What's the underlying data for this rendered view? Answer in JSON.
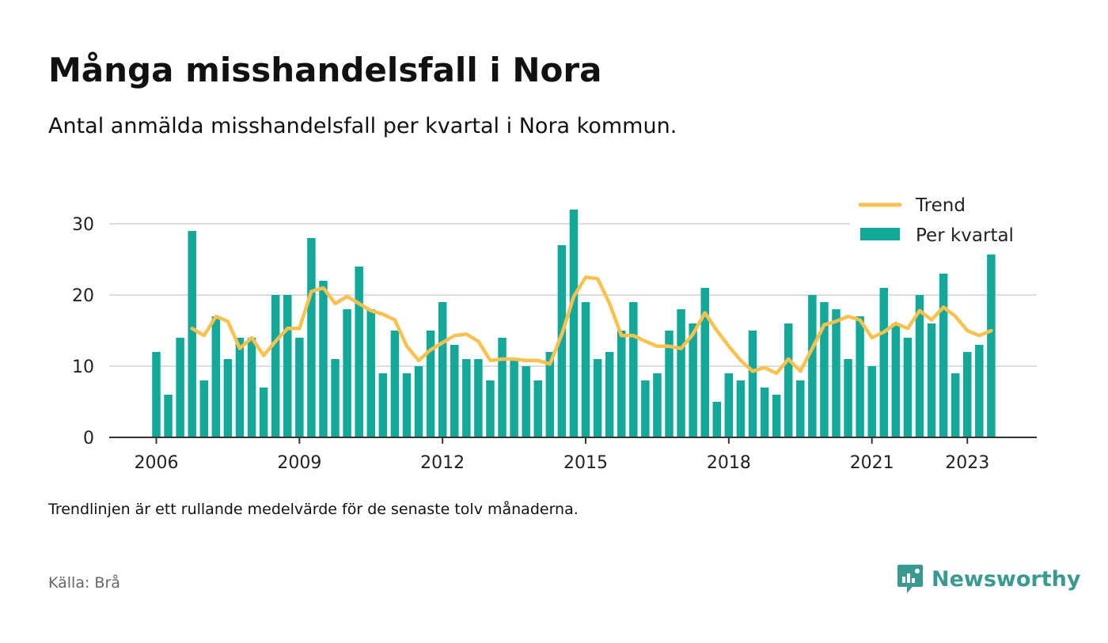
{
  "title": "Många misshandelsfall i Nora",
  "subtitle": "Antal anmälda misshandelsfall per kvartal i Nora kommun.",
  "note": "Trendlinjen är ett rullande medelvärde för de senaste tolv månaderna.",
  "source": "Källa: Brå",
  "brand": {
    "name": "Newsworthy",
    "color": "#3a9a90",
    "icon": "newsworthy-logo-icon"
  },
  "colors": {
    "bar": "#12a89a",
    "trend": "#f9c14e",
    "grid": "#dddddd",
    "axis": "#333333"
  },
  "chart_data": {
    "type": "bar",
    "x_start": "2006 Q1",
    "x_tick_labels": [
      "2006",
      "2009",
      "2012",
      "2015",
      "2018",
      "2021",
      "2023"
    ],
    "y_ticks": [
      0,
      10,
      20,
      30
    ],
    "ylim": [
      0,
      32
    ],
    "grid": true,
    "legend_position": "top-right",
    "series": [
      {
        "name": "Per kvartal",
        "kind": "bar",
        "values": [
          12,
          6,
          14,
          29,
          8,
          17,
          11,
          14,
          14,
          7,
          20,
          20,
          14,
          28,
          22,
          11,
          18,
          24,
          18,
          9,
          15,
          9,
          10,
          15,
          19,
          13,
          11,
          11,
          8,
          14,
          11,
          10,
          8,
          12,
          27,
          32,
          19,
          11,
          12,
          15,
          19,
          8,
          9,
          15,
          18,
          16,
          21,
          5,
          9,
          8,
          15,
          7,
          6,
          16,
          8,
          20,
          19,
          18,
          11,
          17,
          10,
          21,
          16,
          14,
          20,
          16,
          23,
          9,
          12,
          13,
          25.7
        ]
      },
      {
        "name": "Trend",
        "kind": "line",
        "values": [
          null,
          null,
          null,
          15.3,
          14.3,
          17.0,
          16.3,
          12.5,
          14.0,
          11.5,
          13.5,
          15.3,
          15.3,
          20.5,
          21.0,
          18.8,
          19.8,
          18.8,
          17.8,
          17.3,
          16.5,
          12.8,
          10.8,
          12.3,
          13.3,
          14.3,
          14.5,
          13.5,
          10.8,
          11.0,
          11.0,
          10.8,
          10.8,
          10.3,
          14.5,
          19.8,
          22.5,
          22.3,
          18.8,
          14.3,
          14.3,
          13.5,
          12.8,
          12.8,
          12.5,
          14.5,
          17.5,
          15.0,
          12.8,
          10.8,
          9.3,
          9.8,
          9.0,
          11.0,
          9.3,
          12.5,
          15.8,
          16.3,
          17.0,
          16.5,
          14.0,
          14.8,
          16.0,
          15.3,
          17.8,
          16.5,
          18.3,
          17.0,
          15.0,
          14.3,
          15.0
        ]
      }
    ]
  }
}
